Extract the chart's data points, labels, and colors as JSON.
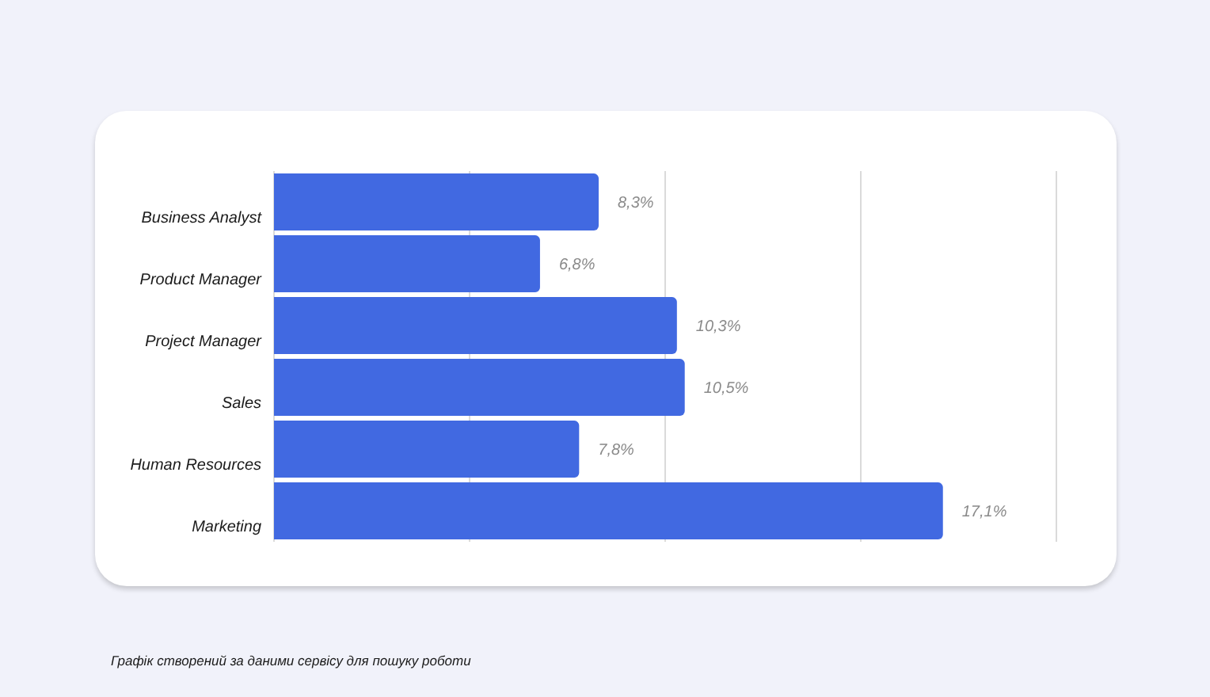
{
  "chart_data": {
    "type": "bar",
    "orientation": "horizontal",
    "categories": [
      "Business Analyst",
      "Product Manager",
      "Project Manager",
      "Sales",
      "Human Resources",
      "Marketing"
    ],
    "values": [
      8.3,
      6.8,
      10.3,
      10.5,
      7.8,
      17.1
    ],
    "value_labels": [
      "8,3%",
      "6,8%",
      "10,3%",
      "10,5%",
      "7,8%",
      "17,1%"
    ],
    "color": "#4169e1",
    "tick_labels": "y",
    "grid": "x",
    "annotations": [
      "Графік створений за даними сервісу для пошуку роботи"
    ]
  }
}
